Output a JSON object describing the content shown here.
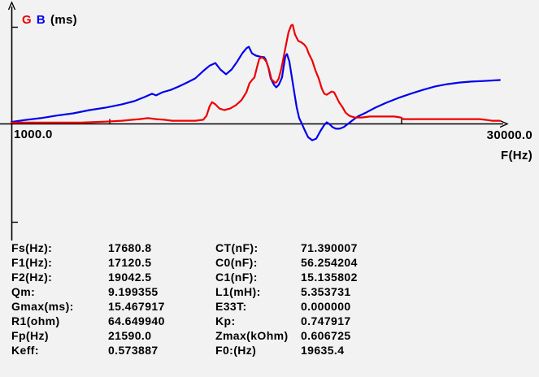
{
  "chart": {
    "legend": {
      "g": "G",
      "b": "B",
      "unit": "(ms)"
    },
    "x_min_label": "1000.0",
    "x_max_label": "30000.0",
    "x_axis_title": "F(Hz)",
    "colors": {
      "g_curve": "#ee0000",
      "b_curve": "#0000ee",
      "axis": "#000000"
    }
  },
  "chart_data": {
    "type": "line",
    "title": "",
    "xlabel": "F(Hz)",
    "ylabel": "G B (ms)",
    "xlim": [
      1000,
      30000
    ],
    "x_scale": "linear",
    "grid": false,
    "legend_position": "top-left",
    "series": [
      {
        "name": "G",
        "unit": "ms",
        "color": "#ee0000",
        "points": [
          [
            1000,
            0.2
          ],
          [
            2230,
            0.2
          ],
          [
            3660,
            0.2
          ],
          [
            5080,
            0.2
          ],
          [
            6510,
            0.35
          ],
          [
            7450,
            0.5
          ],
          [
            8070,
            0.65
          ],
          [
            8500,
            0.75
          ],
          [
            8970,
            0.9
          ],
          [
            9450,
            0.75
          ],
          [
            9920,
            0.65
          ],
          [
            10400,
            0.5
          ],
          [
            11010,
            0.5
          ],
          [
            11730,
            0.5
          ],
          [
            12200,
            0.65
          ],
          [
            12390,
            1.25
          ],
          [
            12580,
            2.8
          ],
          [
            12720,
            3.4
          ],
          [
            12910,
            3.05
          ],
          [
            13150,
            2.4
          ],
          [
            13430,
            2.15
          ],
          [
            13770,
            2.4
          ],
          [
            14100,
            2.9
          ],
          [
            14430,
            3.7
          ],
          [
            14720,
            4.95
          ],
          [
            14900,
            6.35
          ],
          [
            15050,
            6.85
          ],
          [
            15190,
            7.25
          ],
          [
            15330,
            8.75
          ],
          [
            15470,
            10.15
          ],
          [
            15620,
            10.4
          ],
          [
            15760,
            10.15
          ],
          [
            15900,
            9.65
          ],
          [
            16040,
            8.5
          ],
          [
            16190,
            6.95
          ],
          [
            16380,
            6.45
          ],
          [
            16470,
            6.45
          ],
          [
            16610,
            7.1
          ],
          [
            16760,
            8.6
          ],
          [
            16900,
            10.5
          ],
          [
            17040,
            12.4
          ],
          [
            17180,
            14.3
          ],
          [
            17330,
            15.35
          ],
          [
            17420,
            15.47
          ],
          [
            17560,
            13.95
          ],
          [
            17750,
            12.95
          ],
          [
            17940,
            12.7
          ],
          [
            18090,
            12.4
          ],
          [
            18230,
            11.9
          ],
          [
            18370,
            10.9
          ],
          [
            18560,
            9.9
          ],
          [
            18750,
            8.35
          ],
          [
            18940,
            7.1
          ],
          [
            19130,
            5.45
          ],
          [
            19270,
            4.7
          ],
          [
            19410,
            4.55
          ],
          [
            19560,
            4.8
          ],
          [
            19700,
            5.05
          ],
          [
            19840,
            4.95
          ],
          [
            19980,
            4.2
          ],
          [
            20130,
            3.4
          ],
          [
            20320,
            2.65
          ],
          [
            20510,
            1.75
          ],
          [
            20740,
            1.25
          ],
          [
            21030,
            1.0
          ],
          [
            21450,
            1.0
          ],
          [
            21930,
            1.15
          ],
          [
            22400,
            1.15
          ],
          [
            22880,
            1.15
          ],
          [
            23350,
            1.15
          ],
          [
            23730,
            1.0
          ],
          [
            23880,
            0.75
          ],
          [
            24540,
            0.75
          ],
          [
            25490,
            0.75
          ],
          [
            26440,
            0.75
          ],
          [
            27390,
            0.75
          ],
          [
            28340,
            0.75
          ],
          [
            28810,
            0.6
          ],
          [
            29050,
            0.5
          ],
          [
            29520,
            0.5
          ]
        ]
      },
      {
        "name": "B",
        "unit": "ms",
        "color": "#0000ee",
        "points": [
          [
            1000,
            0.3
          ],
          [
            1760,
            0.6
          ],
          [
            2710,
            0.9
          ],
          [
            3660,
            1.3
          ],
          [
            4610,
            1.65
          ],
          [
            5560,
            2.15
          ],
          [
            6510,
            2.55
          ],
          [
            7450,
            3.05
          ],
          [
            8170,
            3.55
          ],
          [
            8780,
            4.2
          ],
          [
            9210,
            4.7
          ],
          [
            9450,
            4.45
          ],
          [
            9830,
            4.95
          ],
          [
            10300,
            5.3
          ],
          [
            10780,
            5.85
          ],
          [
            11250,
            6.45
          ],
          [
            11730,
            7.1
          ],
          [
            12200,
            8.25
          ],
          [
            12580,
            9.1
          ],
          [
            12910,
            9.5
          ],
          [
            13200,
            8.5
          ],
          [
            13530,
            7.75
          ],
          [
            13860,
            8.5
          ],
          [
            14190,
            9.75
          ],
          [
            14480,
            11.0
          ],
          [
            14720,
            11.8
          ],
          [
            14860,
            12.05
          ],
          [
            15050,
            11.0
          ],
          [
            15280,
            10.65
          ],
          [
            15520,
            10.5
          ],
          [
            15760,
            10.4
          ],
          [
            15850,
            10.0
          ],
          [
            16000,
            8.85
          ],
          [
            16140,
            7.1
          ],
          [
            16330,
            6.1
          ],
          [
            16470,
            5.7
          ],
          [
            16610,
            6.1
          ],
          [
            16800,
            7.25
          ],
          [
            16900,
            9.0
          ],
          [
            16990,
            10.5
          ],
          [
            17090,
            10.9
          ],
          [
            17230,
            9.75
          ],
          [
            17370,
            7.35
          ],
          [
            17520,
            4.8
          ],
          [
            17660,
            2.55
          ],
          [
            17800,
            0.9
          ],
          [
            17940,
            0.15
          ],
          [
            18130,
            -1.0
          ],
          [
            18320,
            -2.05
          ],
          [
            18560,
            -2.55
          ],
          [
            18800,
            -2.3
          ],
          [
            19030,
            -1.15
          ],
          [
            19270,
            -0.15
          ],
          [
            19410,
            0.25
          ],
          [
            19560,
            0.0
          ],
          [
            19750,
            -0.5
          ],
          [
            19940,
            -0.75
          ],
          [
            20170,
            -0.75
          ],
          [
            20410,
            -0.5
          ],
          [
            20650,
            0.0
          ],
          [
            20880,
            0.5
          ],
          [
            21220,
            1.15
          ],
          [
            21690,
            1.75
          ],
          [
            22260,
            2.55
          ],
          [
            22880,
            3.3
          ],
          [
            23590,
            4.05
          ],
          [
            24300,
            4.7
          ],
          [
            25010,
            5.3
          ],
          [
            25730,
            5.85
          ],
          [
            26440,
            6.2
          ],
          [
            27150,
            6.45
          ],
          [
            27860,
            6.6
          ],
          [
            28570,
            6.7
          ],
          [
            29520,
            6.85
          ]
        ]
      }
    ]
  },
  "parameters": {
    "rows": [
      {
        "l1": "Fs(Hz):",
        "v1": "17680.8",
        "l2": "CT(nF):",
        "v2": "71.390007"
      },
      {
        "l1": "F1(Hz):",
        "v1": "17120.5",
        "l2": "C0(nF):",
        "v2": "56.254204"
      },
      {
        "l1": "F2(Hz):",
        "v1": "19042.5",
        "l2": "C1(nF):",
        "v2": "15.135802"
      },
      {
        "l1": "Qm:",
        "v1": "9.199355",
        "l2": "L1(mH):",
        "v2": "5.353731"
      },
      {
        "l1": "Gmax(ms):",
        "v1": "15.467917",
        "l2": "E33T:",
        "v2": "0.000000"
      },
      {
        "l1": "R1(ohm)",
        "v1": "64.649940",
        "l2": "Kp:",
        "v2": "0.747917"
      },
      {
        "l1": "Fp(Hz)",
        "v1": "21590.0",
        "l2": "Zmax(kOhm)",
        "v2": "0.606725"
      },
      {
        "l1": "Keff:",
        "v1": "0.573887",
        "l2": "F0:(Hz)",
        "v2": "19635.4"
      }
    ]
  }
}
